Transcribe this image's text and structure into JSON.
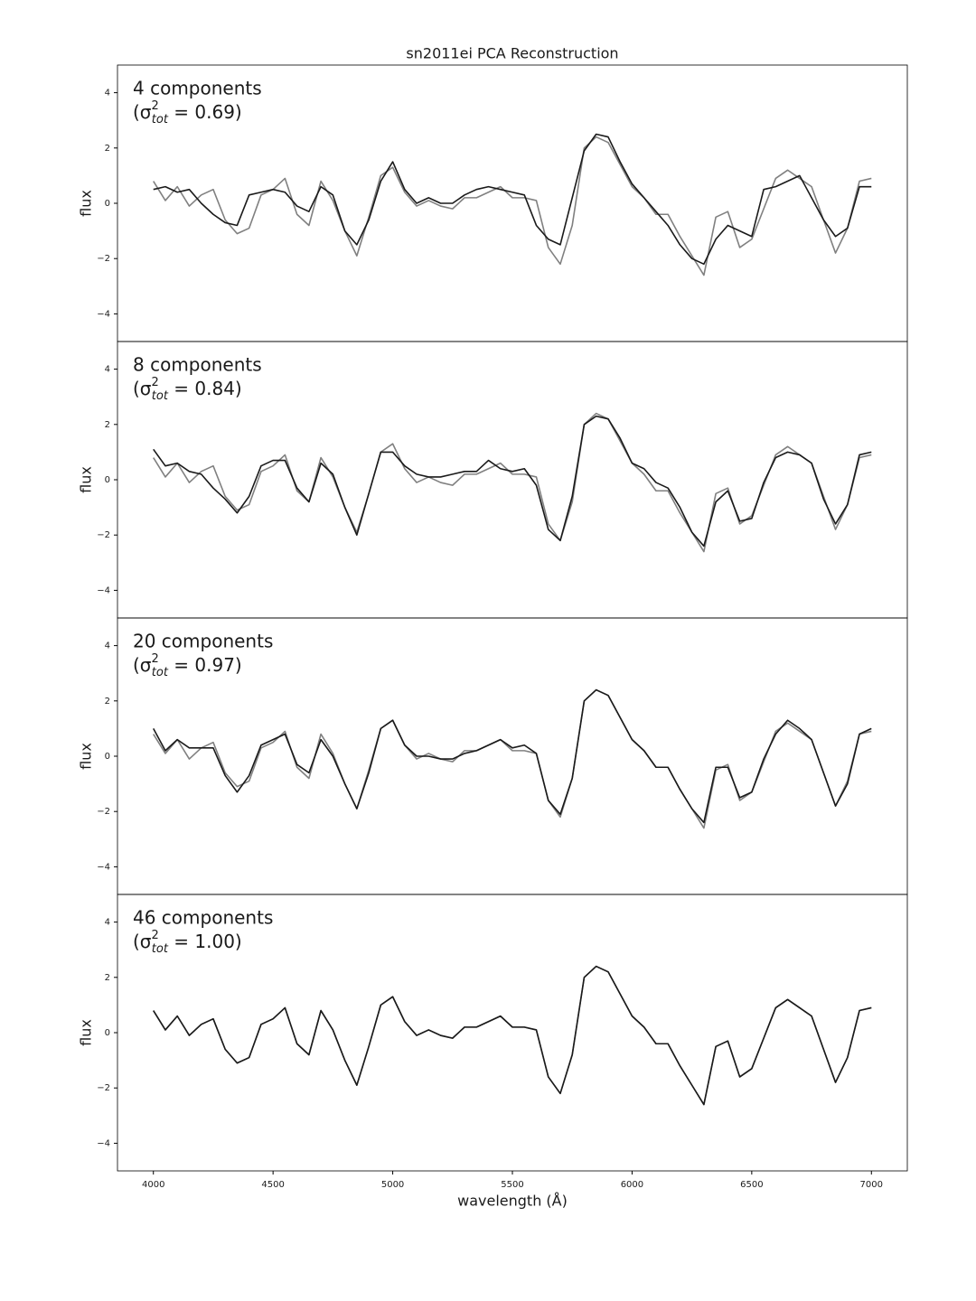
{
  "chart_data": [
    {
      "type": "line",
      "title": "sn2011ei PCA Reconstruction",
      "ylabel": "flux",
      "annotation": "4 components",
      "sigma_label": {
        "open": "(σ",
        "sup": "2",
        "sub": "tot",
        "rest": " = 0.69)"
      },
      "x": [
        4000,
        4050,
        4100,
        4150,
        4200,
        4250,
        4300,
        4350,
        4400,
        4450,
        4500,
        4550,
        4600,
        4650,
        4700,
        4750,
        4800,
        4850,
        4900,
        4950,
        5000,
        5050,
        5100,
        5150,
        5200,
        5250,
        5300,
        5350,
        5400,
        5450,
        5500,
        5550,
        5600,
        5650,
        5700,
        5750,
        5800,
        5850,
        5900,
        5950,
        6000,
        6050,
        6100,
        6150,
        6200,
        6250,
        6300,
        6350,
        6400,
        6450,
        6500,
        6550,
        6600,
        6650,
        6700,
        6750,
        6800,
        6850,
        6900,
        6950,
        7000
      ],
      "xlim": [
        3850,
        7150
      ],
      "ylim": [
        -5,
        5
      ],
      "yticks": [
        {
          "value": -4,
          "label": "−4"
        },
        {
          "value": -2,
          "label": "−2"
        },
        0,
        2,
        4
      ],
      "series": [
        {
          "color": "#808080",
          "values": [
            0.8,
            0.1,
            0.6,
            -0.1,
            0.3,
            0.5,
            -0.6,
            -1.1,
            -0.9,
            0.3,
            0.5,
            0.9,
            -0.4,
            -0.8,
            0.8,
            0.1,
            -1.0,
            -1.9,
            -0.5,
            1.0,
            1.3,
            0.4,
            -0.1,
            0.1,
            -0.1,
            -0.2,
            0.2,
            0.2,
            0.4,
            0.6,
            0.2,
            0.2,
            0.1,
            -1.6,
            -2.2,
            -0.8,
            2.0,
            2.4,
            2.2,
            1.4,
            0.6,
            0.2,
            -0.4,
            -0.4,
            -1.2,
            -1.9,
            -2.6,
            -0.5,
            -0.3,
            -1.6,
            -1.3,
            -0.2,
            0.9,
            1.2,
            0.9,
            0.6,
            -0.6,
            -1.8,
            -0.9,
            0.8,
            0.9
          ]
        },
        {
          "color": "#1a1a1a",
          "values": [
            0.5,
            0.6,
            0.4,
            0.5,
            0.0,
            -0.4,
            -0.7,
            -0.8,
            0.3,
            0.4,
            0.5,
            0.4,
            -0.1,
            -0.3,
            0.6,
            0.3,
            -1.0,
            -1.5,
            -0.6,
            0.8,
            1.5,
            0.5,
            0.0,
            0.2,
            0.0,
            0.0,
            0.3,
            0.5,
            0.6,
            0.5,
            0.4,
            0.3,
            -0.8,
            -1.3,
            -1.5,
            0.2,
            1.9,
            2.5,
            2.4,
            1.5,
            0.7,
            0.2,
            -0.3,
            -0.8,
            -1.5,
            -2.0,
            -2.2,
            -1.3,
            -0.8,
            -1.0,
            -1.2,
            0.5,
            0.6,
            0.8,
            1.0,
            0.2,
            -0.6,
            -1.2,
            -0.9,
            0.6,
            0.6
          ]
        }
      ]
    },
    {
      "type": "line",
      "ylabel": "flux",
      "annotation": "8 components",
      "sigma_label": {
        "open": "(σ",
        "sup": "2",
        "sub": "tot",
        "rest": " = 0.84)"
      },
      "x": [
        4000,
        4050,
        4100,
        4150,
        4200,
        4250,
        4300,
        4350,
        4400,
        4450,
        4500,
        4550,
        4600,
        4650,
        4700,
        4750,
        4800,
        4850,
        4900,
        4950,
        5000,
        5050,
        5100,
        5150,
        5200,
        5250,
        5300,
        5350,
        5400,
        5450,
        5500,
        5550,
        5600,
        5650,
        5700,
        5750,
        5800,
        5850,
        5900,
        5950,
        6000,
        6050,
        6100,
        6150,
        6200,
        6250,
        6300,
        6350,
        6400,
        6450,
        6500,
        6550,
        6600,
        6650,
        6700,
        6750,
        6800,
        6850,
        6900,
        6950,
        7000
      ],
      "xlim": [
        3850,
        7150
      ],
      "ylim": [
        -5,
        5
      ],
      "yticks": [
        {
          "value": -4,
          "label": "−4"
        },
        {
          "value": -2,
          "label": "−2"
        },
        0,
        2,
        4
      ],
      "series": [
        {
          "color": "#808080",
          "values": [
            0.8,
            0.1,
            0.6,
            -0.1,
            0.3,
            0.5,
            -0.6,
            -1.1,
            -0.9,
            0.3,
            0.5,
            0.9,
            -0.4,
            -0.8,
            0.8,
            0.1,
            -1.0,
            -1.9,
            -0.5,
            1.0,
            1.3,
            0.4,
            -0.1,
            0.1,
            -0.1,
            -0.2,
            0.2,
            0.2,
            0.4,
            0.6,
            0.2,
            0.2,
            0.1,
            -1.6,
            -2.2,
            -0.8,
            2.0,
            2.4,
            2.2,
            1.4,
            0.6,
            0.2,
            -0.4,
            -0.4,
            -1.2,
            -1.9,
            -2.6,
            -0.5,
            -0.3,
            -1.6,
            -1.3,
            -0.2,
            0.9,
            1.2,
            0.9,
            0.6,
            -0.6,
            -1.8,
            -0.9,
            0.8,
            0.9
          ]
        },
        {
          "color": "#1a1a1a",
          "values": [
            1.1,
            0.5,
            0.6,
            0.3,
            0.2,
            -0.3,
            -0.7,
            -1.2,
            -0.6,
            0.5,
            0.7,
            0.7,
            -0.3,
            -0.8,
            0.6,
            0.2,
            -1.0,
            -2.0,
            -0.5,
            1.0,
            1.0,
            0.5,
            0.2,
            0.1,
            0.1,
            0.2,
            0.3,
            0.3,
            0.7,
            0.4,
            0.3,
            0.4,
            -0.2,
            -1.8,
            -2.2,
            -0.6,
            2.0,
            2.3,
            2.2,
            1.5,
            0.6,
            0.4,
            -0.1,
            -0.3,
            -1.0,
            -1.9,
            -2.4,
            -0.8,
            -0.4,
            -1.5,
            -1.4,
            -0.1,
            0.8,
            1.0,
            0.9,
            0.6,
            -0.7,
            -1.6,
            -0.9,
            0.9,
            1.0
          ]
        }
      ]
    },
    {
      "type": "line",
      "ylabel": "flux",
      "annotation": "20 components",
      "sigma_label": {
        "open": "(σ",
        "sup": "2",
        "sub": "tot",
        "rest": " = 0.97)"
      },
      "x": [
        4000,
        4050,
        4100,
        4150,
        4200,
        4250,
        4300,
        4350,
        4400,
        4450,
        4500,
        4550,
        4600,
        4650,
        4700,
        4750,
        4800,
        4850,
        4900,
        4950,
        5000,
        5050,
        5100,
        5150,
        5200,
        5250,
        5300,
        5350,
        5400,
        5450,
        5500,
        5550,
        5600,
        5650,
        5700,
        5750,
        5800,
        5850,
        5900,
        5950,
        6000,
        6050,
        6100,
        6150,
        6200,
        6250,
        6300,
        6350,
        6400,
        6450,
        6500,
        6550,
        6600,
        6650,
        6700,
        6750,
        6800,
        6850,
        6900,
        6950,
        7000
      ],
      "xlim": [
        3850,
        7150
      ],
      "ylim": [
        -5,
        5
      ],
      "yticks": [
        {
          "value": -4,
          "label": "−4"
        },
        {
          "value": -2,
          "label": "−2"
        },
        0,
        2,
        4
      ],
      "series": [
        {
          "color": "#808080",
          "values": [
            0.8,
            0.1,
            0.6,
            -0.1,
            0.3,
            0.5,
            -0.6,
            -1.1,
            -0.9,
            0.3,
            0.5,
            0.9,
            -0.4,
            -0.8,
            0.8,
            0.1,
            -1.0,
            -1.9,
            -0.5,
            1.0,
            1.3,
            0.4,
            -0.1,
            0.1,
            -0.1,
            -0.2,
            0.2,
            0.2,
            0.4,
            0.6,
            0.2,
            0.2,
            0.1,
            -1.6,
            -2.2,
            -0.8,
            2.0,
            2.4,
            2.2,
            1.4,
            0.6,
            0.2,
            -0.4,
            -0.4,
            -1.2,
            -1.9,
            -2.6,
            -0.5,
            -0.3,
            -1.6,
            -1.3,
            -0.2,
            0.9,
            1.2,
            0.9,
            0.6,
            -0.6,
            -1.8,
            -0.9,
            0.8,
            0.9
          ]
        },
        {
          "color": "#1a1a1a",
          "values": [
            1.0,
            0.2,
            0.6,
            0.3,
            0.3,
            0.3,
            -0.7,
            -1.3,
            -0.7,
            0.4,
            0.6,
            0.8,
            -0.3,
            -0.6,
            0.6,
            0.0,
            -1.0,
            -1.9,
            -0.6,
            1.0,
            1.3,
            0.4,
            0.0,
            0.0,
            -0.1,
            -0.1,
            0.1,
            0.2,
            0.4,
            0.6,
            0.3,
            0.4,
            0.1,
            -1.6,
            -2.1,
            -0.8,
            2.0,
            2.4,
            2.2,
            1.4,
            0.6,
            0.2,
            -0.4,
            -0.4,
            -1.2,
            -1.9,
            -2.4,
            -0.4,
            -0.4,
            -1.5,
            -1.3,
            -0.1,
            0.8,
            1.3,
            1.0,
            0.6,
            -0.6,
            -1.8,
            -1.0,
            0.8,
            1.0
          ]
        }
      ]
    },
    {
      "type": "line",
      "ylabel": "flux",
      "xlabel": "wavelength (Å)",
      "annotation": "46 components",
      "sigma_label": {
        "open": "(σ",
        "sup": "2",
        "sub": "tot",
        "rest": " = 1.00)"
      },
      "x": [
        4000,
        4050,
        4100,
        4150,
        4200,
        4250,
        4300,
        4350,
        4400,
        4450,
        4500,
        4550,
        4600,
        4650,
        4700,
        4750,
        4800,
        4850,
        4900,
        4950,
        5000,
        5050,
        5100,
        5150,
        5200,
        5250,
        5300,
        5350,
        5400,
        5450,
        5500,
        5550,
        5600,
        5650,
        5700,
        5750,
        5800,
        5850,
        5900,
        5950,
        6000,
        6050,
        6100,
        6150,
        6200,
        6250,
        6300,
        6350,
        6400,
        6450,
        6500,
        6550,
        6600,
        6650,
        6700,
        6750,
        6800,
        6850,
        6900,
        6950,
        7000
      ],
      "xlim": [
        3850,
        7150
      ],
      "ylim": [
        -5,
        5
      ],
      "xticks": [
        4000,
        4500,
        5000,
        5500,
        6000,
        6500,
        7000
      ],
      "yticks": [
        {
          "value": -4,
          "label": "−4"
        },
        {
          "value": -2,
          "label": "−2"
        },
        0,
        2,
        4
      ],
      "series": [
        {
          "color": "#808080",
          "values": [
            0.8,
            0.1,
            0.6,
            -0.1,
            0.3,
            0.5,
            -0.6,
            -1.1,
            -0.9,
            0.3,
            0.5,
            0.9,
            -0.4,
            -0.8,
            0.8,
            0.1,
            -1.0,
            -1.9,
            -0.5,
            1.0,
            1.3,
            0.4,
            -0.1,
            0.1,
            -0.1,
            -0.2,
            0.2,
            0.2,
            0.4,
            0.6,
            0.2,
            0.2,
            0.1,
            -1.6,
            -2.2,
            -0.8,
            2.0,
            2.4,
            2.2,
            1.4,
            0.6,
            0.2,
            -0.4,
            -0.4,
            -1.2,
            -1.9,
            -2.6,
            -0.5,
            -0.3,
            -1.6,
            -1.3,
            -0.2,
            0.9,
            1.2,
            0.9,
            0.6,
            -0.6,
            -1.8,
            -0.9,
            0.8,
            0.9
          ]
        },
        {
          "color": "#1a1a1a",
          "values": [
            0.8,
            0.1,
            0.6,
            -0.1,
            0.3,
            0.5,
            -0.6,
            -1.1,
            -0.9,
            0.3,
            0.5,
            0.9,
            -0.4,
            -0.8,
            0.8,
            0.1,
            -1.0,
            -1.9,
            -0.5,
            1.0,
            1.3,
            0.4,
            -0.1,
            0.1,
            -0.1,
            -0.2,
            0.2,
            0.2,
            0.4,
            0.6,
            0.2,
            0.2,
            0.1,
            -1.6,
            -2.2,
            -0.8,
            2.0,
            2.4,
            2.2,
            1.4,
            0.6,
            0.2,
            -0.4,
            -0.4,
            -1.2,
            -1.9,
            -2.6,
            -0.5,
            -0.3,
            -1.6,
            -1.3,
            -0.2,
            0.9,
            1.2,
            0.9,
            0.6,
            -0.6,
            -1.8,
            -0.9,
            0.8,
            0.9
          ]
        }
      ]
    }
  ]
}
